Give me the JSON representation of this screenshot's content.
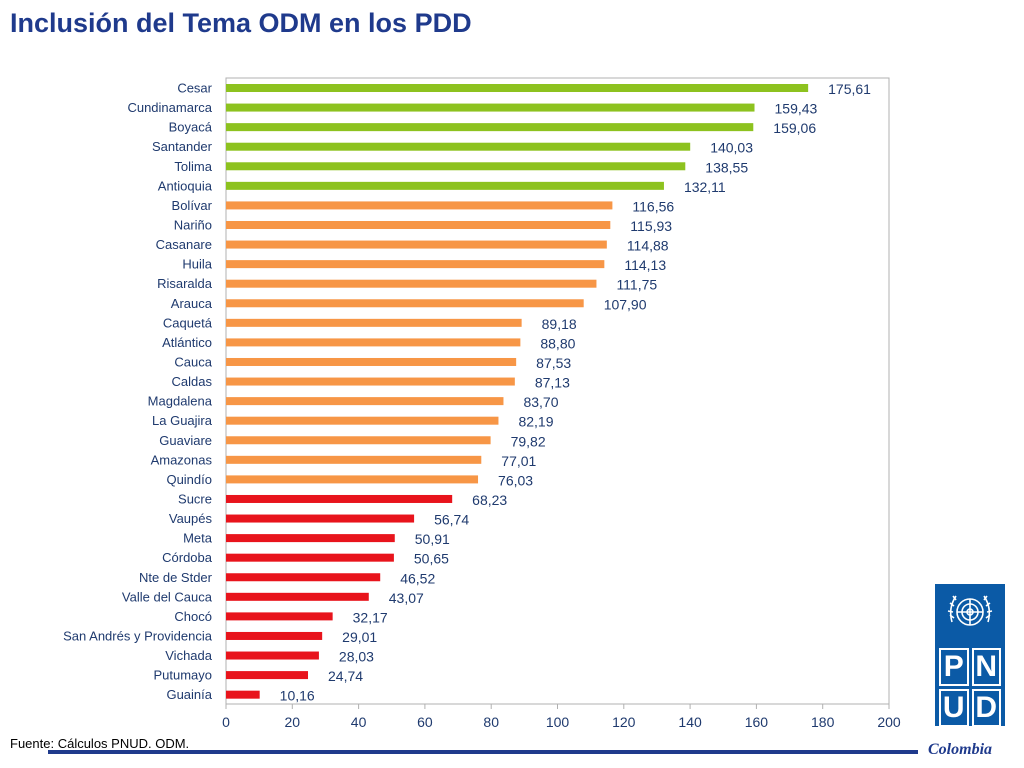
{
  "title": "Inclusión del Tema ODM en los PDD",
  "source": "Fuente: Cálculos PNUD. ODM.",
  "logo": {
    "emblem": "un-emblem-icon",
    "letters": [
      "P",
      "N",
      "U",
      "D"
    ],
    "country": "Colombia"
  },
  "colors": {
    "green": "#8dc21f",
    "orange": "#f79646",
    "red": "#e8141c",
    "axis": "#b0b0b0",
    "label": "#1f3a6e",
    "value": "#1f3a6e"
  },
  "chart_data": {
    "type": "bar",
    "orientation": "horizontal",
    "categories": [
      "Cesar",
      "Cundinamarca",
      "Boyacá",
      "Santander",
      "Tolima",
      "Antioquia",
      "Bolívar",
      "Nariño",
      "Casanare",
      "Huila",
      "Risaralda",
      "Arauca",
      "Caquetá",
      "Atlántico",
      "Cauca",
      "Caldas",
      "Magdalena",
      "La Guajira",
      "Guaviare",
      "Amazonas",
      "Quindío",
      "Sucre",
      "Vaupés",
      "Meta",
      "Córdoba",
      "Nte de Stder",
      "Valle del Cauca",
      "Chocó",
      "San Andrés y Providencia",
      "Vichada",
      "Putumayo",
      "Guainía"
    ],
    "values": [
      175.61,
      159.43,
      159.06,
      140.03,
      138.55,
      132.11,
      116.56,
      115.93,
      114.88,
      114.13,
      111.75,
      107.9,
      89.18,
      88.8,
      87.53,
      87.13,
      83.7,
      82.19,
      79.82,
      77.01,
      76.03,
      68.23,
      56.74,
      50.91,
      50.65,
      46.52,
      43.07,
      32.17,
      29.01,
      28.03,
      24.74,
      10.16
    ],
    "value_labels": [
      "175,61",
      "159,43",
      "159,06",
      "140,03",
      "138,55",
      "132,11",
      "116,56",
      "115,93",
      "114,88",
      "114,13",
      "111,75",
      "107,90",
      "89,18",
      "88,80",
      "87,53",
      "87,13",
      "83,70",
      "82,19",
      "79,82",
      "77,01",
      "76,03",
      "68,23",
      "56,74",
      "50,91",
      "50,65",
      "46,52",
      "43,07",
      "32,17",
      "29,01",
      "28,03",
      "24,74",
      "10,16"
    ],
    "bar_colors": [
      "green",
      "green",
      "green",
      "green",
      "green",
      "green",
      "orange",
      "orange",
      "orange",
      "orange",
      "orange",
      "orange",
      "orange",
      "orange",
      "orange",
      "orange",
      "orange",
      "orange",
      "orange",
      "orange",
      "orange",
      "red",
      "red",
      "red",
      "red",
      "red",
      "red",
      "red",
      "red",
      "red",
      "red",
      "red"
    ],
    "xlim": [
      0,
      200
    ],
    "xticks": [
      0,
      20,
      40,
      60,
      80,
      100,
      120,
      140,
      160,
      180,
      200
    ],
    "grid": false,
    "legend": "none"
  }
}
